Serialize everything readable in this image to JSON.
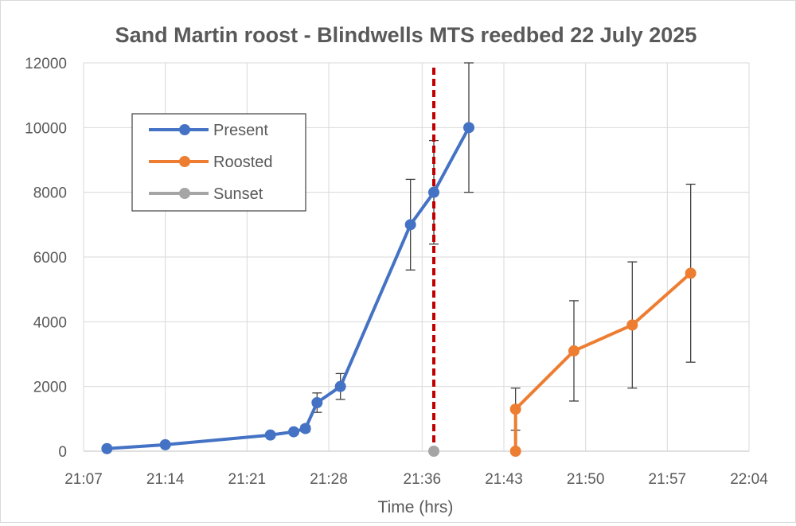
{
  "chart_data": {
    "type": "line",
    "title": "Sand Martin roost - Blindwells MTS reedbed 22 July 2025",
    "xlabel": "Time (hrs)",
    "ylabel": "",
    "x_ticks": [
      "21:07",
      "21:14",
      "21:21",
      "21:28",
      "21:36",
      "21:43",
      "21:50",
      "21:57",
      "22:04"
    ],
    "xlim": [
      "21:07",
      "22:04"
    ],
    "ylim": [
      0,
      12000
    ],
    "y_ticks": [
      0,
      2000,
      4000,
      6000,
      8000,
      10000,
      12000
    ],
    "grid": true,
    "legend_position": "top-left",
    "series": [
      {
        "name": "Present",
        "color": "#4472c4",
        "points": [
          {
            "x": "21:09",
            "y": 80,
            "err": null
          },
          {
            "x": "21:14",
            "y": 200,
            "err": null
          },
          {
            "x": "21:23",
            "y": 500,
            "err": null
          },
          {
            "x": "21:25",
            "y": 600,
            "err": null
          },
          {
            "x": "21:26",
            "y": 700,
            "err": 100
          },
          {
            "x": "21:27",
            "y": 1500,
            "err": 300
          },
          {
            "x": "21:29",
            "y": 2000,
            "err": 400
          },
          {
            "x": "21:35",
            "y": 7000,
            "err": 1400
          },
          {
            "x": "21:37",
            "y": 8000,
            "err": 1600
          },
          {
            "x": "21:40",
            "y": 10000,
            "err": 2000
          }
        ]
      },
      {
        "name": "Roosted",
        "color": "#ed7d31",
        "points": [
          {
            "x": "21:44",
            "y": 0,
            "err": null
          },
          {
            "x": "21:44",
            "y": 1300,
            "err": 650
          },
          {
            "x": "21:49",
            "y": 3100,
            "err": 1550
          },
          {
            "x": "21:54",
            "y": 3900,
            "err": 1950
          },
          {
            "x": "21:59",
            "y": 5500,
            "err": 2750
          }
        ]
      },
      {
        "name": "Sunset",
        "color": "#a5a5a5",
        "points": [
          {
            "x": "21:37",
            "y": 0,
            "err": null
          }
        ]
      }
    ],
    "sunset_line": {
      "x": "21:37",
      "color": "#c00000"
    }
  }
}
